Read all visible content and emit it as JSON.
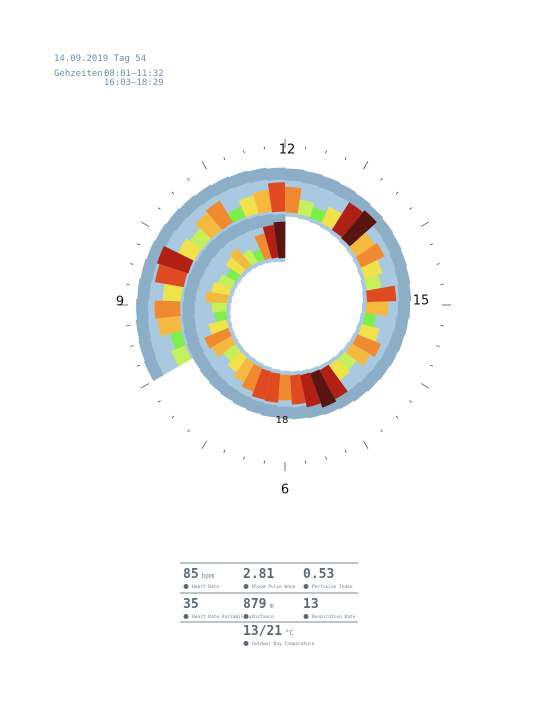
{
  "header": {
    "date": "14.09.2019 Tag 54",
    "walk_label": "Gehzeiten:",
    "walk_times": [
      "08:01–11:32",
      "16:03–18:29"
    ]
  },
  "clock_labels": [
    "12",
    "15",
    "18",
    "9",
    "6"
  ],
  "spiral": {
    "segments": [
      3,
      2,
      5,
      6,
      4,
      7,
      8,
      4,
      3,
      5,
      6,
      2,
      4,
      5,
      7,
      6,
      3,
      2,
      4,
      8,
      9,
      5,
      6,
      4,
      3,
      7,
      5,
      2,
      4,
      6,
      5,
      3,
      4,
      8,
      9,
      8,
      7,
      6,
      7,
      7,
      6,
      5,
      4,
      3,
      5,
      6,
      4,
      2,
      3,
      5,
      4,
      3,
      2,
      4,
      5,
      3,
      2,
      6,
      8,
      9
    ],
    "level_colors": [
      "#9cc3de",
      "#b8d7ea",
      "#7cf04a",
      "#c6f05a",
      "#f0e24a",
      "#f5b940",
      "#f08a30",
      "#e04a20",
      "#b02015",
      "#5a1510"
    ]
  },
  "stats": {
    "rows": [
      [
        {
          "value": "85",
          "unit": "bpm",
          "label": "Heart Rate"
        },
        {
          "value": "2.81",
          "unit": "",
          "label": "Blood Pulse Wave"
        },
        {
          "value": "0.53",
          "unit": "",
          "label": "Perfusion Index"
        }
      ],
      [
        {
          "value": "35",
          "unit": "",
          "label": "Heart Rate Variability"
        },
        {
          "value": "879",
          "unit": "m",
          "label": "Distance"
        },
        {
          "value": "13",
          "unit": "",
          "label": "Respiration Rate"
        }
      ]
    ],
    "temperature": {
      "value": "13/21",
      "unit": "°C",
      "label": "Outdoor Day Temperature"
    }
  }
}
